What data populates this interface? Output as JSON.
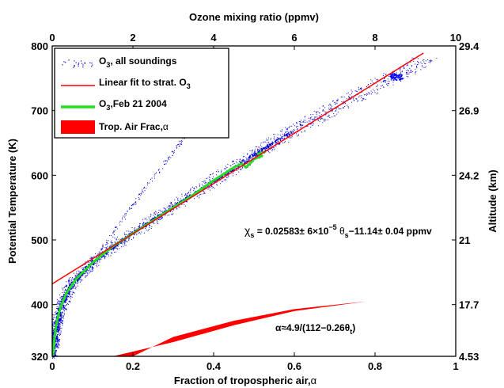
{
  "chart_data": {
    "type": "scatter",
    "title": "Ozone mixing ratio (ppmv)",
    "xlabel_bottom": "Fraction of tropospheric air,",
    "xlabel_bottom_symbol": "α",
    "ylabel_left": "Potential Temperature  (K)",
    "ylabel_right": "Altitude (km)",
    "x_bottom": {
      "range": [
        0,
        1
      ],
      "ticks": [
        "0",
        "0.2",
        "0.4",
        "0.6",
        "0.8",
        "1"
      ]
    },
    "x_top": {
      "range": [
        0,
        10
      ],
      "ticks": [
        "0",
        "2",
        "4",
        "6",
        "8",
        "10"
      ]
    },
    "y_left": {
      "range": [
        320,
        800
      ],
      "ticks": [
        "320",
        "400",
        "500",
        "600",
        "700",
        "800"
      ]
    },
    "y_right_ticks": [
      {
        "theta": 320,
        "label": "4.53"
      },
      {
        "theta": 400,
        "label": "17.7"
      },
      {
        "theta": 500,
        "label": "21"
      },
      {
        "theta": 600,
        "label": "24.2"
      },
      {
        "theta": 700,
        "label": "26.9"
      },
      {
        "theta": 800,
        "label": "29.4"
      }
    ],
    "legend": {
      "position": "top-left",
      "entries": [
        {
          "symbol": "O",
          "sub": "3",
          "text": ",  all soundings",
          "color": "#0000cc",
          "style": "dots"
        },
        {
          "symbol": "Linear fit to strat. O",
          "sub": "3",
          "text": "",
          "color": "#ff0000",
          "style": "line"
        },
        {
          "symbol": "O",
          "sub": "3",
          "text": ",Feb 21 2004",
          "color": "#22dd22",
          "style": "thickline"
        },
        {
          "symbol": "Trop. Air Frac,",
          "sub": "",
          "text": "α",
          "color": "#ff0000",
          "style": "patch"
        }
      ]
    },
    "annotations": {
      "fit_eq": {
        "chi": "χ",
        "s": "s",
        "part1": " = 0.02583± 6×10",
        "exp": "−5",
        "theta": " θ",
        "part2": "−11.14± 0.04 ppmv"
      },
      "alpha_eq": {
        "lhs": "α≈4.9/(112−0.26θ",
        "sub": "t",
        "rhs": ")"
      }
    },
    "series": [
      {
        "name": "Linear fit to strat. O3",
        "color": "#ff0000",
        "axis": "top",
        "points": [
          [
            0.0,
            432
          ],
          [
            9.2,
            789
          ]
        ]
      },
      {
        "name": "O3,Feb 21 2004",
        "color": "#22dd22",
        "axis": "top",
        "points": [
          [
            0.02,
            320
          ],
          [
            0.05,
            345
          ],
          [
            0.1,
            370
          ],
          [
            0.2,
            395
          ],
          [
            0.35,
            418
          ],
          [
            0.6,
            440
          ],
          [
            1.0,
            465
          ],
          [
            1.5,
            490
          ],
          [
            2.0,
            510
          ],
          [
            2.5,
            530
          ],
          [
            3.0,
            550
          ],
          [
            3.5,
            570
          ],
          [
            4.0,
            592
          ],
          [
            4.5,
            612
          ],
          [
            4.7,
            618
          ],
          [
            4.8,
            612
          ],
          [
            4.9,
            618
          ],
          [
            5.0,
            625
          ],
          [
            5.2,
            630
          ],
          [
            5.1,
            633
          ],
          [
            5.3,
            637
          ]
        ]
      },
      {
        "name": "O3, all soundings",
        "color": "#0000cc",
        "axis": "top",
        "band": [
          [
            0.0,
            320
          ],
          [
            0.05,
            345
          ],
          [
            0.1,
            370
          ],
          [
            0.2,
            395
          ],
          [
            0.35,
            418
          ],
          [
            0.6,
            442
          ],
          [
            1.0,
            466
          ],
          [
            1.5,
            490
          ],
          [
            2.0,
            512
          ],
          [
            2.5,
            532
          ],
          [
            3.0,
            552
          ],
          [
            3.5,
            572
          ],
          [
            4.0,
            592
          ],
          [
            4.5,
            612
          ],
          [
            5.0,
            632
          ],
          [
            5.5,
            652
          ],
          [
            6.0,
            670
          ],
          [
            6.5,
            688
          ],
          [
            7.0,
            706
          ],
          [
            7.5,
            722
          ],
          [
            8.0,
            738
          ],
          [
            8.5,
            754
          ],
          [
            9.0,
            770
          ],
          [
            9.2,
            780
          ]
        ],
        "branch": [
          [
            1.0,
            466
          ],
          [
            1.6,
            520
          ],
          [
            2.3,
            580
          ],
          [
            2.9,
            630
          ],
          [
            3.4,
            668
          ]
        ],
        "cluster": [
          8.5,
          753
        ]
      }
    ],
    "band_alpha": {
      "name": "Trop. Air Frac, α",
      "color": "#ff0000",
      "axis": "bottom",
      "upper": [
        [
          0.2,
          320
        ],
        [
          0.3,
          350
        ],
        [
          0.45,
          375
        ],
        [
          0.6,
          393
        ],
        [
          0.78,
          405
        ]
      ],
      "lower": [
        [
          0.78,
          405
        ],
        [
          0.6,
          390
        ],
        [
          0.45,
          368
        ],
        [
          0.3,
          342
        ],
        [
          0.15,
          320
        ]
      ]
    }
  }
}
